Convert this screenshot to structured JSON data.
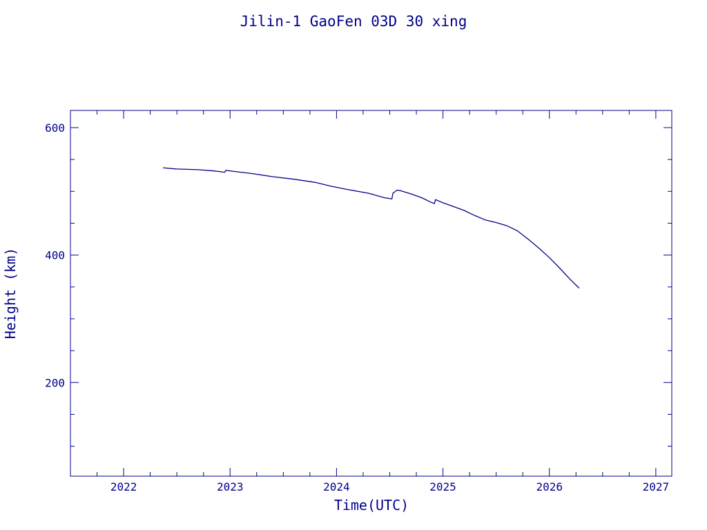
{
  "chart_data": {
    "type": "line",
    "title": "Jilin-1 GaoFen 03D 30 xing",
    "xlabel": "Time(UTC)",
    "ylabel": "Height (km)",
    "xlim": [
      2021.5,
      2027.15
    ],
    "ylim": [
      53,
      627
    ],
    "x_ticks": [
      2022,
      2023,
      2024,
      2025,
      2026,
      2027
    ],
    "y_ticks": [
      200,
      400,
      600
    ],
    "grid": false,
    "color": "#00008b",
    "series": [
      {
        "x": [
          2022.37,
          2022.5,
          2022.7,
          2022.85,
          2022.95,
          2022.96,
          2023.05,
          2023.2,
          2023.4,
          2023.6,
          2023.8,
          2023.95,
          2024.1,
          2024.3,
          2024.45,
          2024.52,
          2024.53,
          2024.57,
          2024.6,
          2024.7,
          2024.8,
          2024.9,
          2024.92,
          2024.93,
          2025.0,
          2025.1,
          2025.2,
          2025.3,
          2025.4,
          2025.5,
          2025.6,
          2025.7,
          2025.8,
          2025.9,
          2026.0,
          2026.1,
          2026.2,
          2026.28
        ],
        "y": [
          537,
          535,
          534,
          532,
          530,
          533,
          531,
          528,
          523,
          519,
          514,
          508,
          503,
          497,
          490,
          488,
          497,
          502,
          501,
          496,
          490,
          482,
          481,
          487,
          482,
          476,
          470,
          462,
          455,
          451,
          446,
          438,
          425,
          411,
          396,
          379,
          361,
          348
        ]
      }
    ]
  }
}
